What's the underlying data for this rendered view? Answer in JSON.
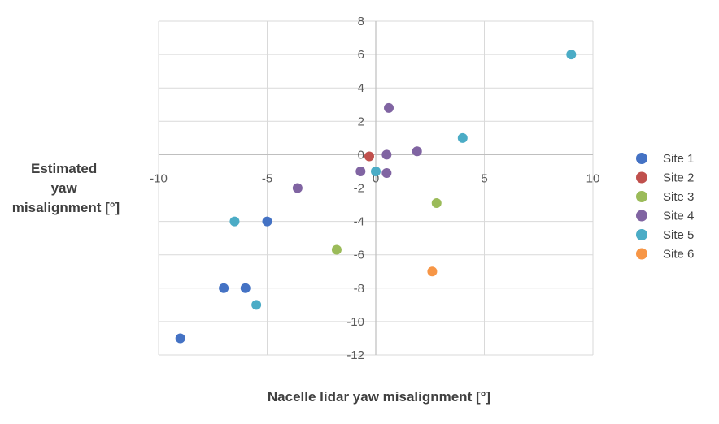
{
  "chart_data": {
    "type": "scatter",
    "title": "",
    "xlabel": "Nacelle lidar yaw misalignment [°]",
    "ylabel_lines": [
      "Estimated",
      "yaw",
      "misalignment [°]"
    ],
    "xlim": [
      -10,
      10
    ],
    "ylim": [
      -12,
      8
    ],
    "xticks": [
      -10,
      -5,
      0,
      5,
      10
    ],
    "yticks": [
      -12,
      -10,
      -8,
      -6,
      -4,
      -2,
      0,
      2,
      4,
      6,
      8
    ],
    "grid": true,
    "legend_position": "right",
    "series": [
      {
        "name": "Site 1",
        "color": "#4472C4",
        "points": [
          [
            -9,
            -11
          ],
          [
            -7,
            -8
          ],
          [
            -6,
            -8
          ],
          [
            -5,
            -4
          ]
        ]
      },
      {
        "name": "Site 2",
        "color": "#C0504D",
        "points": [
          [
            -0.3,
            -0.1
          ]
        ]
      },
      {
        "name": "Site 3",
        "color": "#9BBB59",
        "points": [
          [
            -1.8,
            -5.7
          ],
          [
            2.8,
            -2.9
          ]
        ]
      },
      {
        "name": "Site 4",
        "color": "#8064A2",
        "points": [
          [
            -3.6,
            -2.0
          ],
          [
            -0.7,
            -1.0
          ],
          [
            0.5,
            0.0
          ],
          [
            0.6,
            2.8
          ],
          [
            0.5,
            -1.1
          ],
          [
            1.9,
            0.2
          ]
        ]
      },
      {
        "name": "Site 5",
        "color": "#4BACC6",
        "points": [
          [
            -6.5,
            -4.0
          ],
          [
            -5.5,
            -9.0
          ],
          [
            0.0,
            -1.0
          ],
          [
            4.0,
            1.0
          ],
          [
            9.0,
            6.0
          ]
        ]
      },
      {
        "name": "Site 6",
        "color": "#F79646",
        "points": [
          [
            2.6,
            -7.0
          ]
        ]
      }
    ]
  }
}
